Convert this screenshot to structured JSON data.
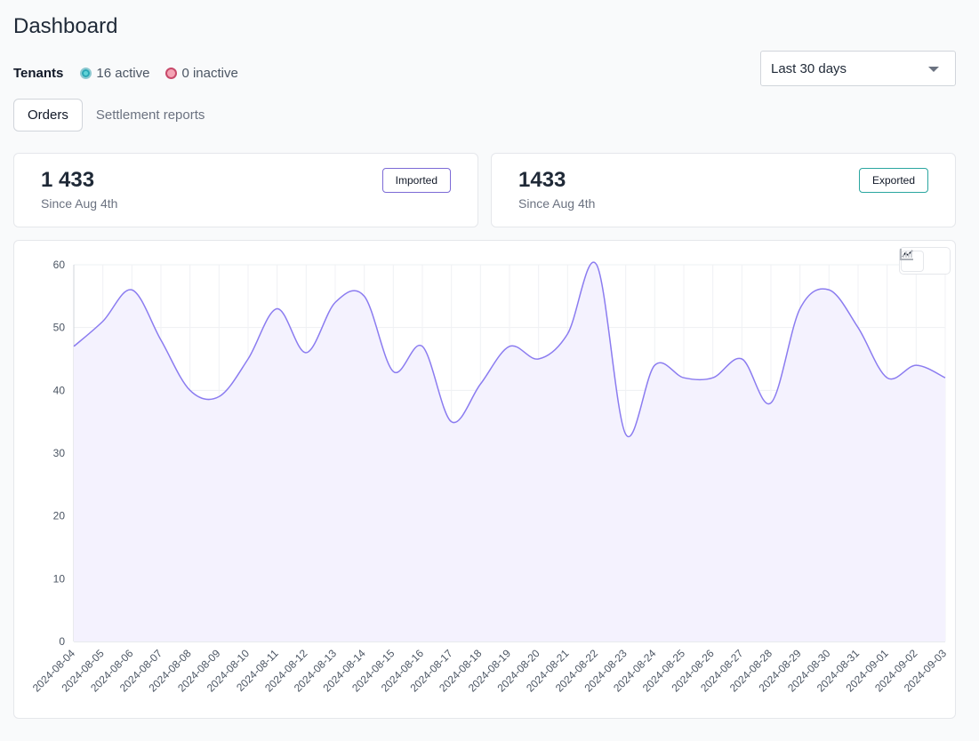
{
  "page": {
    "title": "Dashboard"
  },
  "tenants": {
    "label": "Tenants",
    "active": "16 active",
    "inactive": "0 inactive",
    "active_color": "#5fd3d7",
    "inactive_color": "#f4a3b4"
  },
  "range_select": {
    "value": "Last 30 days"
  },
  "tabs": [
    {
      "label": "Orders",
      "selected": true
    },
    {
      "label": "Settlement reports",
      "selected": false
    }
  ],
  "cards": [
    {
      "value": "1 433",
      "since": "Since Aug 4th",
      "badge": "Imported"
    },
    {
      "value": "1433",
      "since": "Since Aug 4th",
      "badge": "Exported"
    }
  ],
  "chart_toggle": {
    "icons": [
      "line-chart-icon",
      "bar-chart-icon"
    ],
    "selected": "line-chart-icon"
  },
  "chart_data": {
    "type": "area",
    "title": "",
    "xlabel": "",
    "ylabel": "",
    "ylim": [
      0,
      60
    ],
    "yticks": [
      0,
      10,
      20,
      30,
      40,
      50,
      60
    ],
    "grid": true,
    "line_color": "#8b7cf0",
    "fill_color": "#f4f2fe",
    "x": [
      "2024-08-04",
      "2024-08-05",
      "2024-08-06",
      "2024-08-07",
      "2024-08-08",
      "2024-08-09",
      "2024-08-10",
      "2024-08-11",
      "2024-08-12",
      "2024-08-13",
      "2024-08-14",
      "2024-08-15",
      "2024-08-16",
      "2024-08-17",
      "2024-08-18",
      "2024-08-19",
      "2024-08-20",
      "2024-08-21",
      "2024-08-22",
      "2024-08-23",
      "2024-08-24",
      "2024-08-25",
      "2024-08-26",
      "2024-08-27",
      "2024-08-28",
      "2024-08-29",
      "2024-08-30",
      "2024-08-31",
      "2024-09-01",
      "2024-09-02",
      "2024-09-03"
    ],
    "series": [
      {
        "values": [
          47,
          51,
          56,
          48,
          40,
          39,
          45,
          53,
          46,
          54,
          55,
          43,
          47,
          35,
          41,
          47,
          45,
          49,
          60,
          33,
          44,
          42,
          42,
          45,
          38,
          53,
          56,
          50,
          42,
          44,
          42
        ]
      }
    ]
  }
}
